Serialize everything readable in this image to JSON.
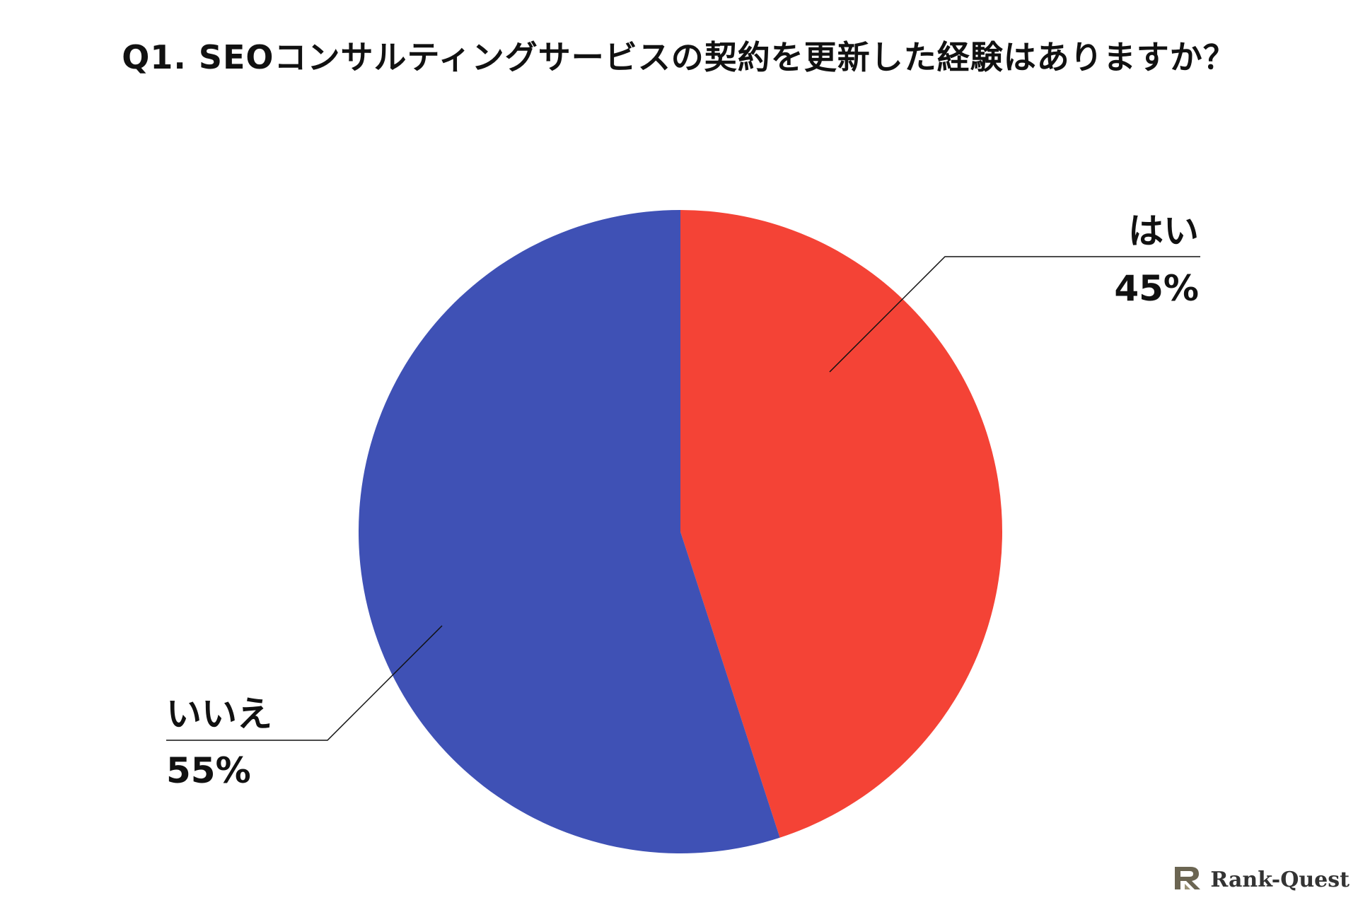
{
  "chart_data": {
    "type": "pie",
    "title": "Q1. SEOコンサルティングサービスの契約を更新した経験はありますか？",
    "slices": [
      {
        "label": "はい",
        "value": 45,
        "value_label": "45%",
        "color": "#f44336"
      },
      {
        "label": "いいえ",
        "value": 55,
        "value_label": "55%",
        "color": "#3f51b5"
      }
    ],
    "start": "12 o'clock",
    "direction": "clockwise",
    "legend": "none"
  },
  "brand": {
    "name": "Rank-Quest",
    "logo_icon": "rank-quest-logo-icon"
  }
}
